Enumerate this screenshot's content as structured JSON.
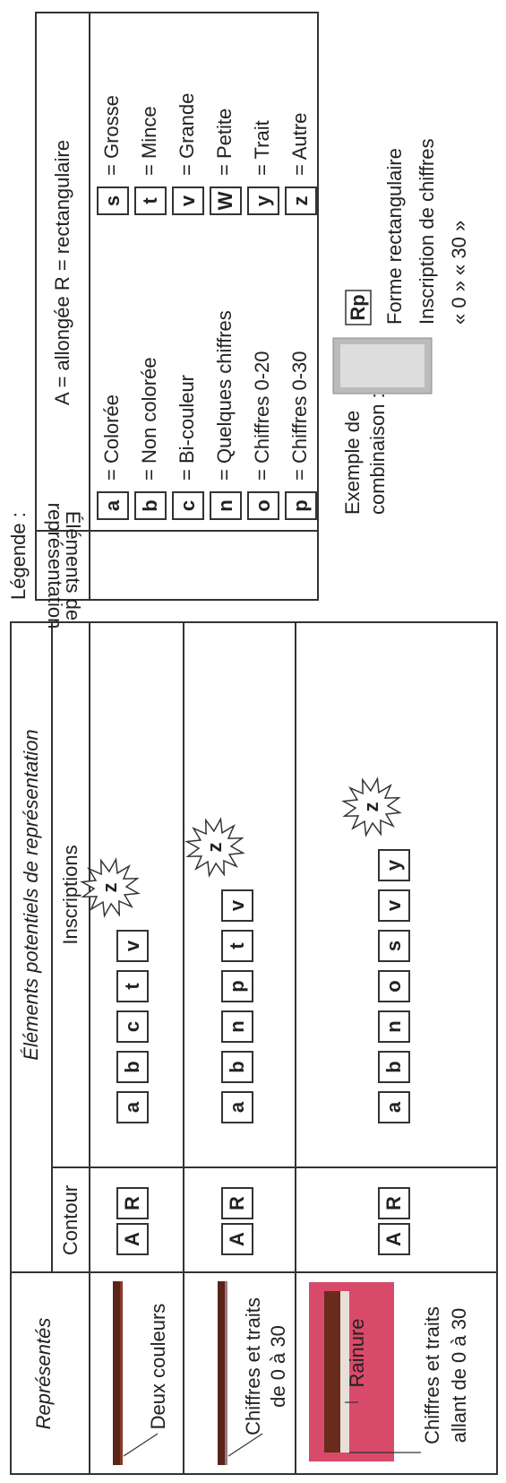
{
  "table": {
    "header": {
      "represented": "Représentés",
      "elements": "Éléments potentiels de représentation",
      "contour": "Contour",
      "inscriptions": "Inscriptions"
    },
    "rows": [
      {
        "labels": [
          "Deux couleurs"
        ],
        "contour": [
          "A",
          "R"
        ],
        "inscriptions": [
          "a",
          "b",
          "c",
          "t",
          "v"
        ],
        "burst": "z"
      },
      {
        "labels": [
          "Chiffres et traits",
          "de 0 à 30"
        ],
        "contour": [
          "A",
          "R"
        ],
        "inscriptions": [
          "a",
          "b",
          "n",
          "p",
          "t",
          "v"
        ],
        "burst": "z"
      },
      {
        "labels": [
          "Rainure",
          "Chiffres et traits",
          "allant de 0 à 30"
        ],
        "contour": [
          "A",
          "R"
        ],
        "inscriptions": [
          "a",
          "b",
          "n",
          "o",
          "s",
          "v",
          "y"
        ],
        "burst": "z"
      }
    ]
  },
  "legend": {
    "title": "Légende :",
    "column": [
      "Éléments de",
      "représentation"
    ],
    "shapes": "A = allongée  R = rectangulaire",
    "left": [
      {
        "code": "a",
        "meaning": "= Colorée"
      },
      {
        "code": "b",
        "meaning": "= Non colorée"
      },
      {
        "code": "c",
        "meaning": "= Bi-couleur"
      },
      {
        "code": "n",
        "meaning": "= Quelques chiffres"
      },
      {
        "code": "o",
        "meaning": "= Chiffres 0-20"
      },
      {
        "code": "p",
        "meaning": "= Chiffres 0-30"
      }
    ],
    "right": [
      {
        "code": "s",
        "meaning": "= Grosse"
      },
      {
        "code": "t",
        "meaning": "= Mince"
      },
      {
        "code": "v",
        "meaning": "= Grande"
      },
      {
        "code": "W",
        "meaning": "= Petite"
      },
      {
        "code": "y",
        "meaning": "= Trait"
      },
      {
        "code": "z",
        "meaning": "= Autre"
      }
    ]
  },
  "example": {
    "title": [
      "Exemple de",
      "combinaison :"
    ],
    "code": "Rp",
    "lines": [
      "Forme rectangulaire",
      "Inscription de chiffres",
      "« 0 » « 30 »"
    ]
  }
}
